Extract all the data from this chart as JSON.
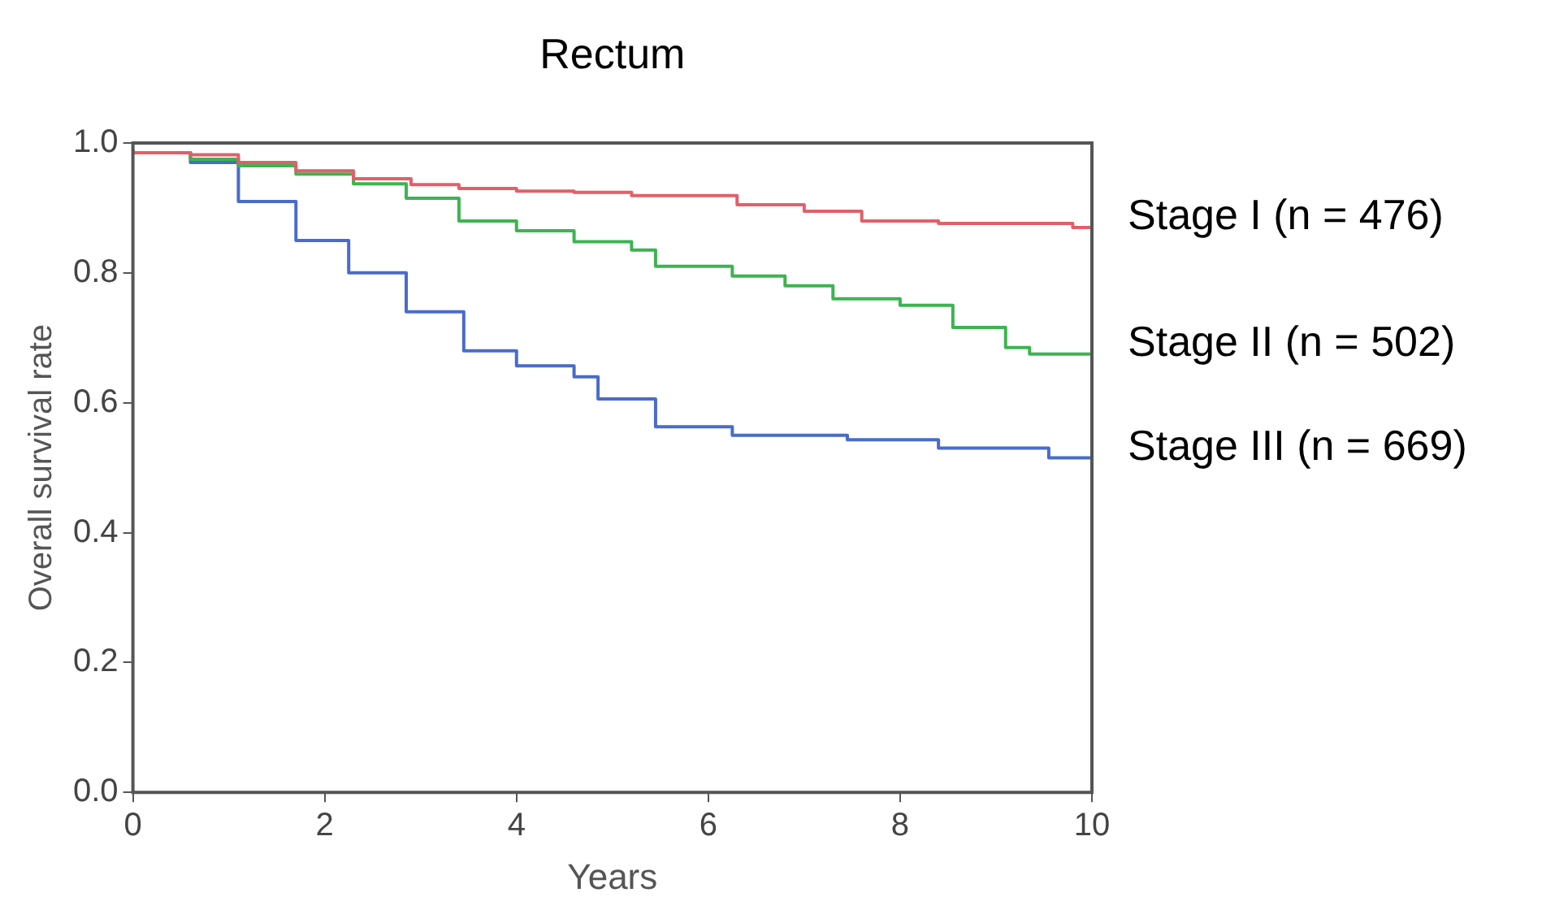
{
  "chart_data": {
    "type": "step",
    "title": "Rectum",
    "xlabel": "Years",
    "ylabel": "Overall survival rate",
    "xlim": [
      0,
      10
    ],
    "xticks": [
      0,
      2,
      4,
      6,
      8,
      10
    ],
    "ylim": [
      0,
      1
    ],
    "yticks": [
      {
        "value": 0,
        "label": "0.0"
      },
      {
        "value": 0.2,
        "label": "0.2"
      },
      {
        "value": 0.4,
        "label": "0.4"
      },
      {
        "value": 0.6,
        "label": "0.6"
      },
      {
        "value": 0.8,
        "label": "0.8"
      },
      {
        "value": 1,
        "label": "1.0"
      }
    ],
    "grid": false,
    "legend": false,
    "marker": "none",
    "line_style": "solid",
    "series": [
      {
        "name": "Stage I (n = 476)",
        "color": "#e0606a",
        "x": [
          0,
          0.6,
          1.1,
          1.7,
          2.3,
          2.9,
          3.4,
          4.0,
          4.6,
          5.2,
          6.3,
          7.0,
          7.6,
          8.4,
          9.8,
          10
        ],
        "values": [
          0.99,
          0.985,
          0.982,
          0.97,
          0.957,
          0.945,
          0.936,
          0.93,
          0.926,
          0.924,
          0.919,
          0.905,
          0.895,
          0.88,
          0.876,
          0.87
        ]
      },
      {
        "name": "Stage II (n = 502)",
        "color": "#3cb450",
        "x": [
          0,
          0.6,
          1.1,
          1.7,
          2.3,
          2.85,
          3.4,
          4.0,
          4.6,
          5.2,
          5.45,
          6.25,
          6.8,
          7.3,
          8.0,
          8.55,
          9.1,
          9.35,
          10
        ],
        "values": [
          0.99,
          0.985,
          0.975,
          0.965,
          0.952,
          0.937,
          0.915,
          0.88,
          0.865,
          0.848,
          0.835,
          0.81,
          0.795,
          0.78,
          0.76,
          0.75,
          0.716,
          0.685,
          0.675
        ]
      },
      {
        "name": "Stage III (n = 669)",
        "color": "#4a6cc8",
        "x": [
          0,
          0.6,
          1.1,
          1.7,
          2.25,
          2.85,
          3.45,
          4.0,
          4.6,
          4.85,
          5.45,
          6.25,
          7.45,
          8.4,
          9.55,
          10
        ],
        "values": [
          0.99,
          0.985,
          0.97,
          0.91,
          0.85,
          0.8,
          0.74,
          0.68,
          0.657,
          0.64,
          0.606,
          0.563,
          0.55,
          0.543,
          0.53,
          0.515
        ]
      }
    ]
  }
}
